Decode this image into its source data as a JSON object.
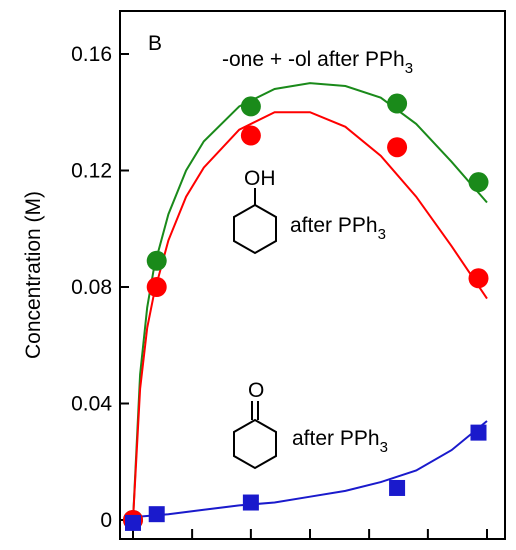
{
  "chart_data": {
    "type": "scatter",
    "panel_label": "B",
    "ylabel": "Concentration  (M)",
    "xlabel": "",
    "xlim": [
      -2,
      100
    ],
    "ylim": [
      -0.006,
      0.174
    ],
    "y_ticks": [
      {
        "value": 0,
        "label": "0"
      },
      {
        "value": 0.04,
        "label": "0.04"
      },
      {
        "value": 0.08,
        "label": "0.08"
      },
      {
        "value": 0.12,
        "label": "0.12"
      },
      {
        "value": 0.16,
        "label": "0.16"
      }
    ],
    "x_ticks": [
      0,
      16.7,
      33.3,
      50,
      66.7,
      83.3,
      100
    ],
    "grid": false,
    "series": [
      {
        "name": "-one + -ol after PPh3",
        "color": "#1a8a1a",
        "marker": "circle",
        "x": [
          0,
          6.7,
          33.3,
          74.6,
          97.6
        ],
        "y": [
          0.0,
          0.089,
          0.142,
          0.143,
          0.116
        ],
        "fit": [
          [
            0,
            0
          ],
          [
            2,
            0.05
          ],
          [
            4,
            0.073
          ],
          [
            6,
            0.087
          ],
          [
            10,
            0.105
          ],
          [
            15,
            0.12
          ],
          [
            20,
            0.13
          ],
          [
            30,
            0.142
          ],
          [
            40,
            0.148
          ],
          [
            50,
            0.15
          ],
          [
            60,
            0.149
          ],
          [
            70,
            0.145
          ],
          [
            80,
            0.136
          ],
          [
            90,
            0.123
          ],
          [
            100,
            0.109
          ]
        ]
      },
      {
        "name": "after PPh3",
        "color": "#ff0000",
        "marker": "circle",
        "x": [
          0,
          6.7,
          33.3,
          74.6,
          97.6
        ],
        "y": [
          0.0,
          0.08,
          0.132,
          0.128,
          0.083
        ],
        "fit": [
          [
            0,
            0
          ],
          [
            2,
            0.045
          ],
          [
            4,
            0.066
          ],
          [
            6,
            0.078
          ],
          [
            10,
            0.096
          ],
          [
            15,
            0.111
          ],
          [
            20,
            0.121
          ],
          [
            30,
            0.134
          ],
          [
            40,
            0.14
          ],
          [
            50,
            0.14
          ],
          [
            60,
            0.135
          ],
          [
            70,
            0.125
          ],
          [
            80,
            0.111
          ],
          [
            90,
            0.094
          ],
          [
            100,
            0.076
          ]
        ]
      },
      {
        "name": "after PPh3",
        "color": "#1a1acc",
        "marker": "square",
        "x": [
          0,
          6.7,
          33.3,
          74.6,
          97.6
        ],
        "y": [
          -0.001,
          0.002,
          0.006,
          0.011,
          0.03
        ],
        "fit": [
          [
            0,
            0.001
          ],
          [
            10,
            0.002
          ],
          [
            20,
            0.0035
          ],
          [
            30,
            0.005
          ],
          [
            40,
            0.006
          ],
          [
            50,
            0.008
          ],
          [
            60,
            0.01
          ],
          [
            70,
            0.013
          ],
          [
            80,
            0.017
          ],
          [
            90,
            0.024
          ],
          [
            100,
            0.034
          ]
        ]
      }
    ],
    "annotations": {
      "legend_top": {
        "main": "-one + -ol after PPh",
        "sub": "3"
      },
      "alcohol": {
        "main": "after PPh",
        "sub": "3",
        "group": "OH"
      },
      "ketone": {
        "main": "after PPh",
        "sub": "3",
        "group": "O"
      }
    }
  }
}
